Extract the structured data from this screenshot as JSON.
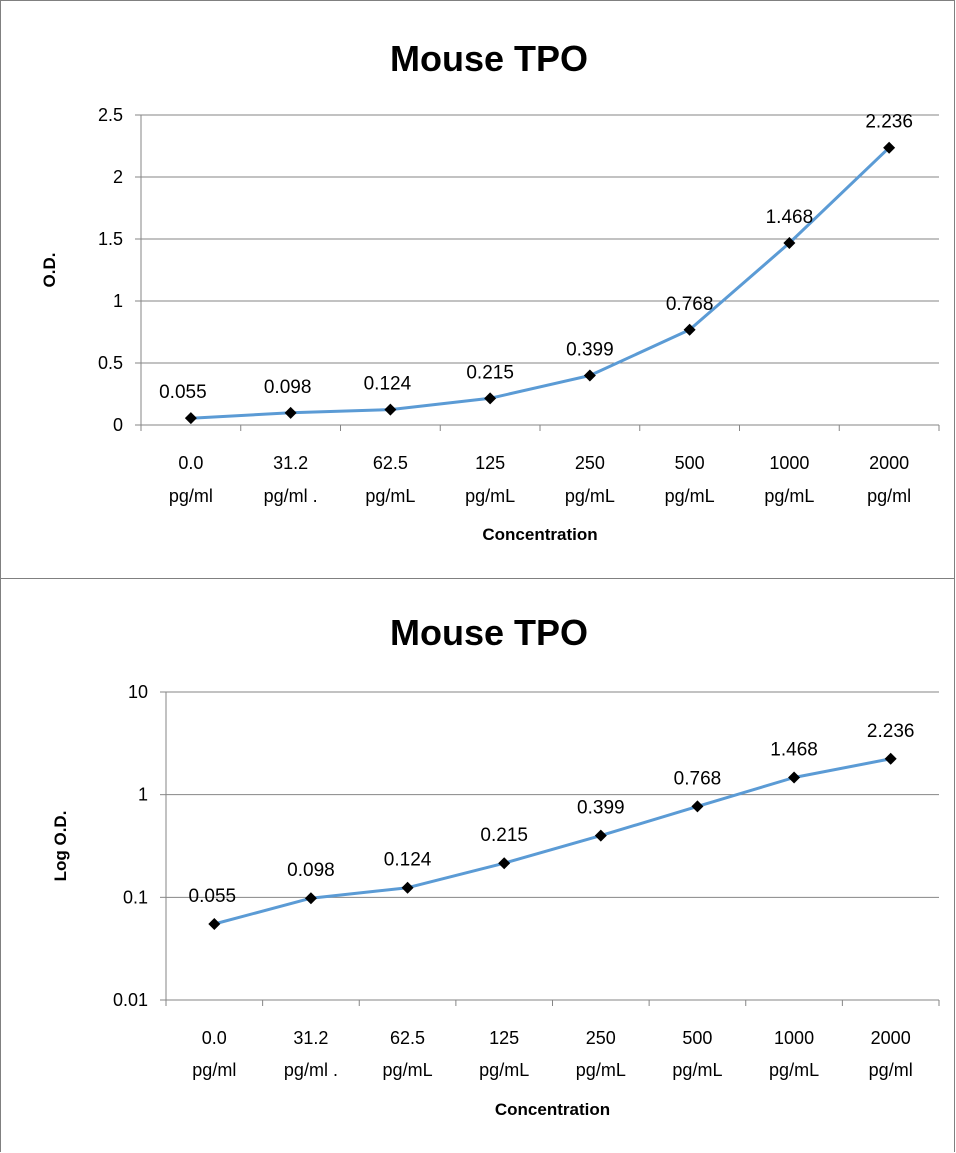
{
  "chart_data": [
    {
      "type": "line",
      "title": "Mouse TPO",
      "xlabel": "Concentration",
      "ylabel": "O.D.",
      "yscale": "linear",
      "ylim": [
        0,
        2.5
      ],
      "yticks": [
        "0",
        "0.5",
        "1",
        "1.5",
        "2",
        "2.5"
      ],
      "grid": true,
      "categories": [
        [
          "0.0",
          "pg/ml"
        ],
        [
          "31.2",
          "pg/ml ."
        ],
        [
          "62.5",
          "pg/mL"
        ],
        [
          "125",
          "pg/mL"
        ],
        [
          "250",
          "pg/mL"
        ],
        [
          "500",
          "pg/mL"
        ],
        [
          "1000",
          "pg/mL"
        ],
        [
          "2000",
          "pg/ml"
        ]
      ],
      "values": [
        0.055,
        0.098,
        0.124,
        0.215,
        0.399,
        0.768,
        1.468,
        2.236
      ],
      "data_labels": [
        "0.055",
        "0.098",
        "0.124",
        "0.215",
        "0.399",
        "0.768",
        "1.468",
        "2.236"
      ],
      "line_color": "#5B9BD5",
      "marker_color": "#000000"
    },
    {
      "type": "line",
      "title": "Mouse TPO",
      "xlabel": "Concentration",
      "ylabel": "Log O.D.",
      "yscale": "log",
      "ylim": [
        0.01,
        10
      ],
      "yticks": [
        "0.01",
        "0.1",
        "1",
        "10"
      ],
      "grid": true,
      "categories": [
        [
          "0.0",
          "pg/ml"
        ],
        [
          "31.2",
          "pg/ml ."
        ],
        [
          "62.5",
          "pg/mL"
        ],
        [
          "125",
          "pg/mL"
        ],
        [
          "250",
          "pg/mL"
        ],
        [
          "500",
          "pg/mL"
        ],
        [
          "1000",
          "pg/mL"
        ],
        [
          "2000",
          "pg/ml"
        ]
      ],
      "values": [
        0.055,
        0.098,
        0.124,
        0.215,
        0.399,
        0.768,
        1.468,
        2.236
      ],
      "data_labels": [
        "0.055",
        "0.098",
        "0.124",
        "0.215",
        "0.399",
        "0.768",
        "1.468",
        "2.236"
      ],
      "line_color": "#5B9BD5",
      "marker_color": "#000000"
    }
  ]
}
